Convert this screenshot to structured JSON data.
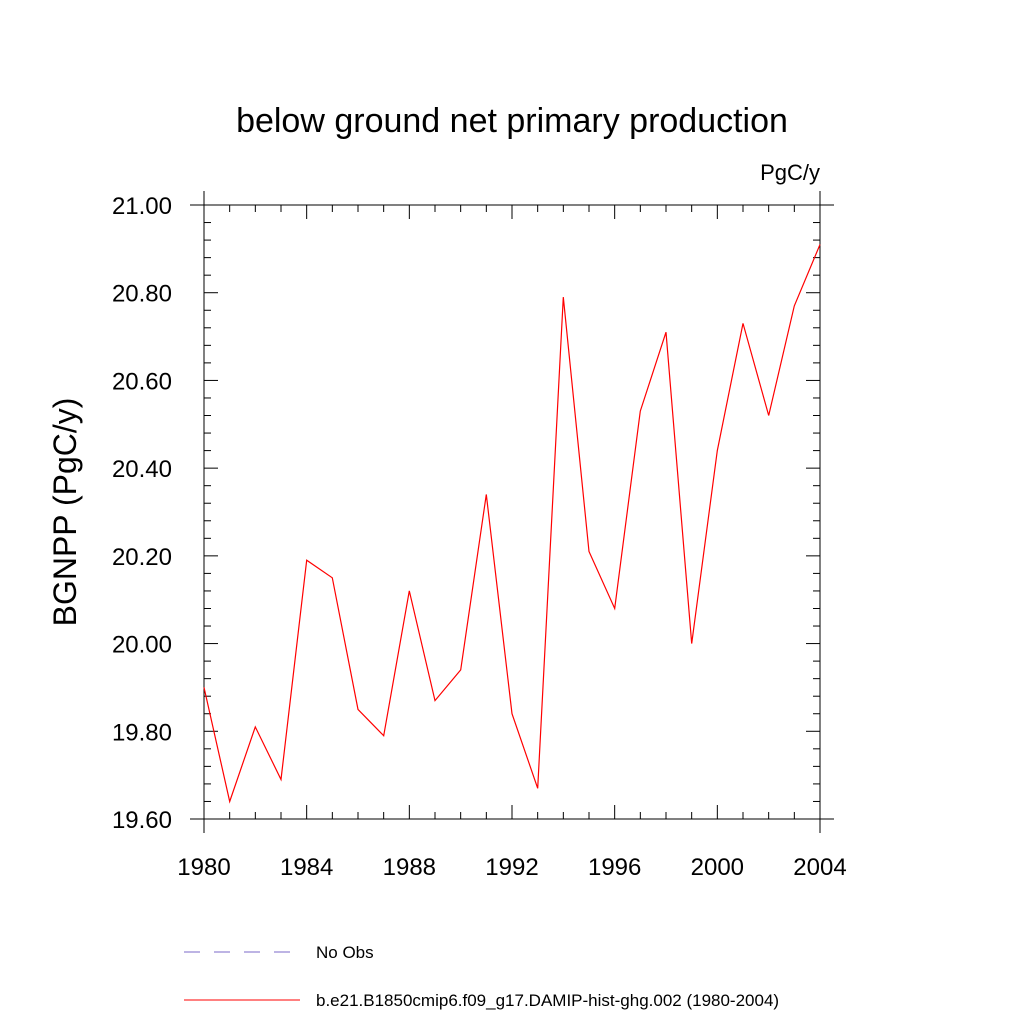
{
  "chart_data": {
    "type": "line",
    "title": "below ground net primary production",
    "units_label": "PgC/y",
    "xlabel": "",
    "ylabel": "BGNPP  (PgC/y)",
    "xlim": [
      1980,
      2004
    ],
    "ylim": [
      19.6,
      21.0
    ],
    "x_ticks": [
      1980,
      1984,
      1988,
      1992,
      1996,
      2000,
      2004
    ],
    "x_tick_labels": [
      "1980",
      "1984",
      "1988",
      "1992",
      "1996",
      "2000",
      "2004"
    ],
    "y_ticks": [
      19.6,
      19.8,
      20.0,
      20.2,
      20.4,
      20.6,
      20.8,
      21.0
    ],
    "y_tick_labels": [
      "19.60",
      "19.80",
      "20.00",
      "20.20",
      "20.40",
      "20.60",
      "20.80",
      "21.00"
    ],
    "grid": false,
    "legend_position": "bottom",
    "x": [
      1980,
      1981,
      1982,
      1983,
      1984,
      1985,
      1986,
      1987,
      1988,
      1989,
      1990,
      1991,
      1992,
      1993,
      1994,
      1995,
      1996,
      1997,
      1998,
      1999,
      2000,
      2001,
      2002,
      2003,
      2004
    ],
    "series": [
      {
        "name": "b.e21.B1850cmip6.f09_g17.DAMIP-hist-ghg.002 (1980-2004)",
        "color": "#ff0000",
        "style": "solid",
        "values": [
          19.9,
          19.64,
          19.81,
          19.69,
          20.19,
          20.15,
          19.85,
          19.79,
          20.12,
          19.87,
          19.94,
          20.34,
          19.84,
          19.67,
          20.79,
          20.21,
          20.08,
          20.53,
          20.71,
          20.0,
          20.44,
          20.73,
          20.52,
          20.77,
          20.91
        ]
      }
    ],
    "legend": [
      {
        "label": "No Obs",
        "color": "#7b68c8",
        "style": "dashed"
      },
      {
        "label": "b.e21.B1850cmip6.f09_g17.DAMIP-hist-ghg.002 (1980-2004)",
        "color": "#ff0000",
        "style": "solid"
      }
    ]
  }
}
